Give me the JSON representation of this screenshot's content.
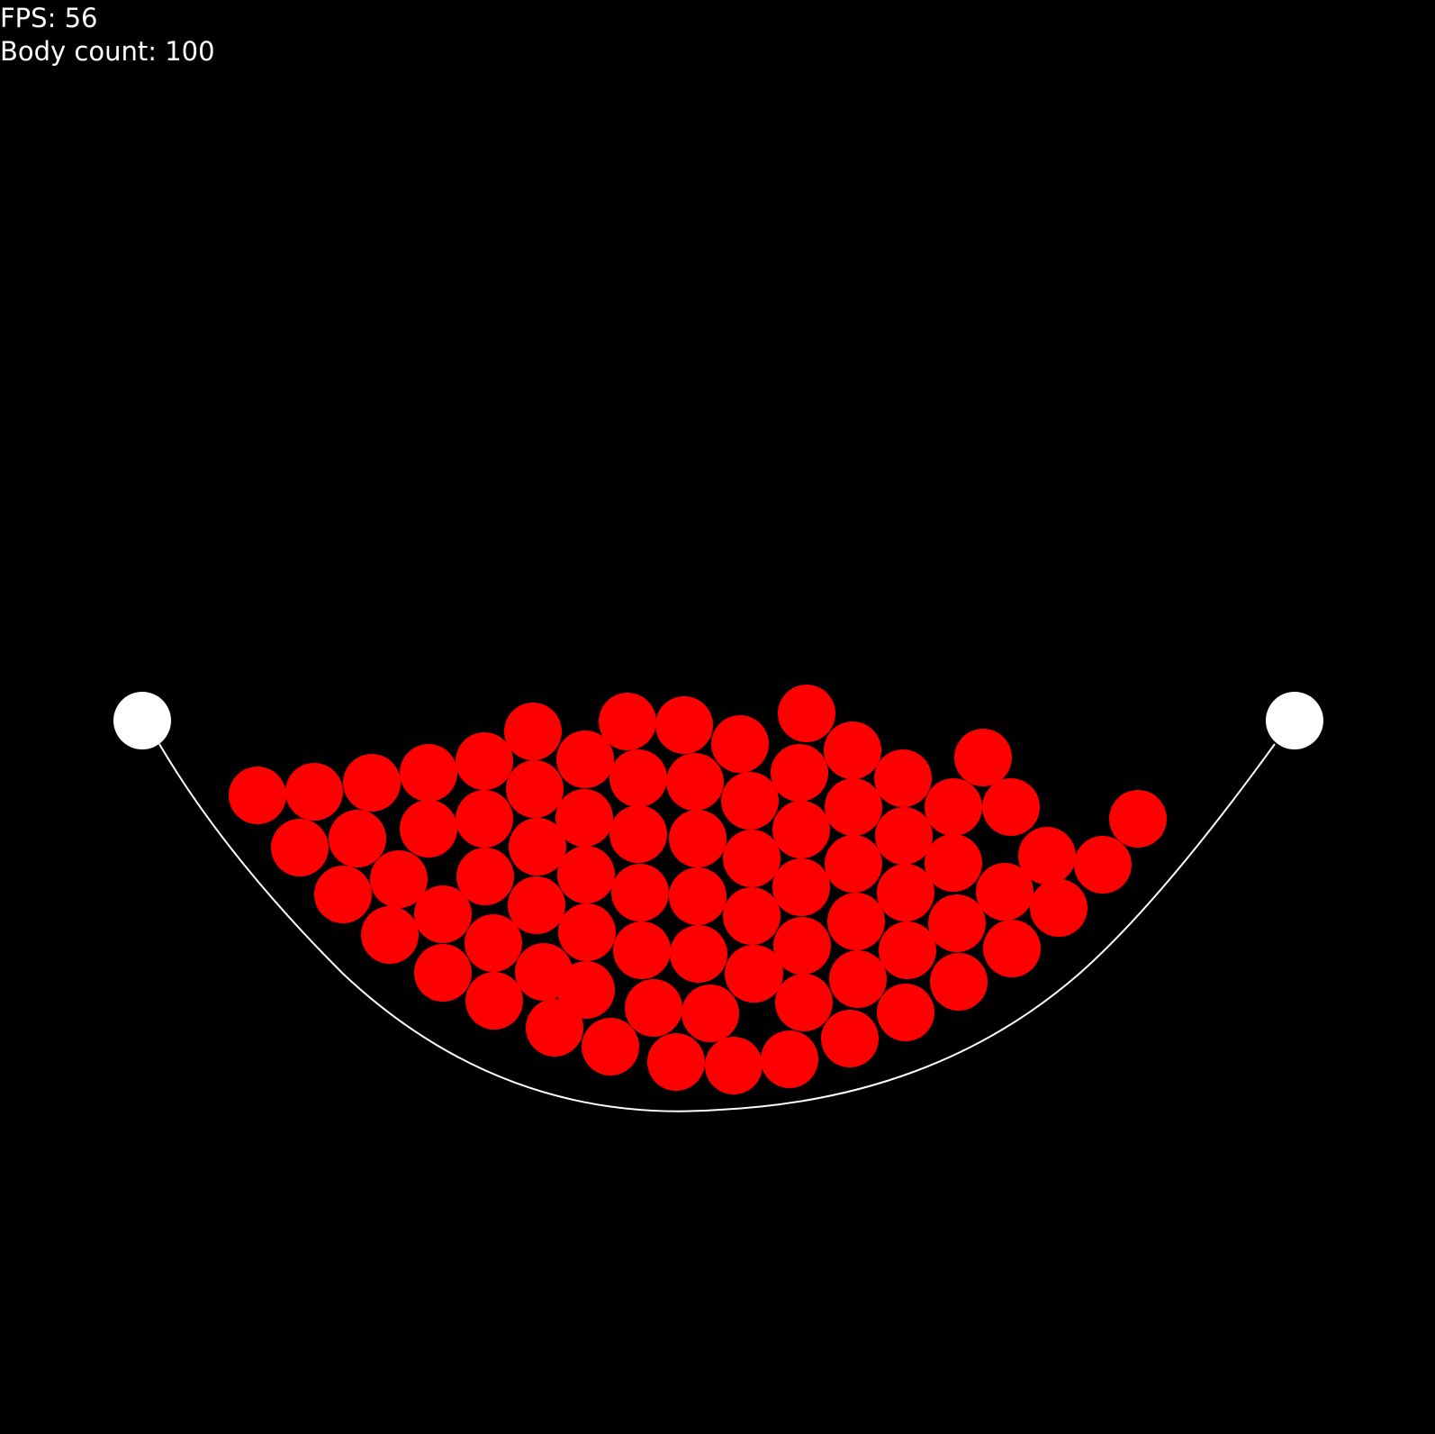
{
  "hud": {
    "fps": "FPS: 56",
    "body_count": "Body count: 100"
  },
  "colors": {
    "background": "#000000",
    "ball": "#ff0000",
    "anchor": "#ffffff",
    "rope": "#ffffff",
    "text": "#ffffff"
  }
}
